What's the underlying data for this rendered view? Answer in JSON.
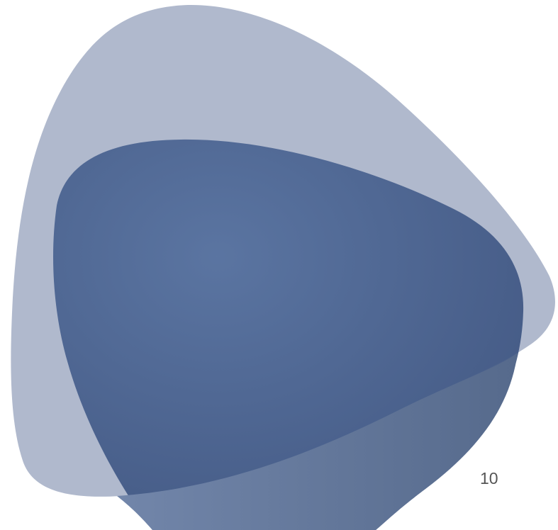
{
  "page_number": "10",
  "colors": {
    "back_shape": "#b0b9cd",
    "front_shape_light": "#5672a3",
    "front_shape_dark": "#3d5582",
    "overlap_light": "#6e83a6",
    "overlap_dark": "#566b8e",
    "page_number_text": "#555555"
  }
}
